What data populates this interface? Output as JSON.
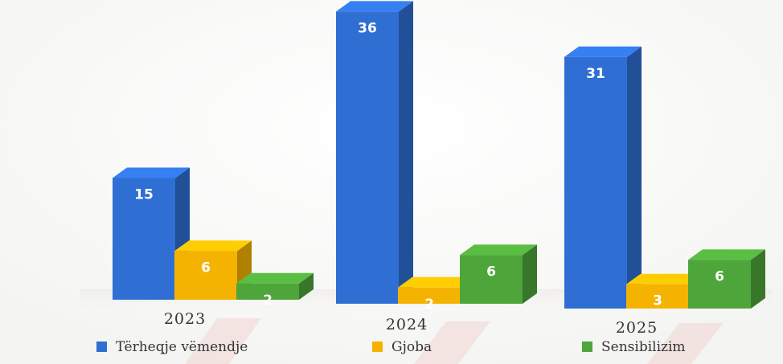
{
  "chart_data": {
    "type": "bar",
    "categories": [
      "2023",
      "2024",
      "2025"
    ],
    "series": [
      {
        "name": "Tërheqje vëmendje",
        "values": [
          15,
          36,
          31
        ],
        "color": "#2f6fd3"
      },
      {
        "name": "Gjoba",
        "values": [
          6,
          2,
          3
        ],
        "color": "#f5b301"
      },
      {
        "name": "Sensibilizim",
        "values": [
          2,
          6,
          6
        ],
        "color": "#4ea53a"
      }
    ],
    "data_labels": true,
    "style": "3d-columns",
    "legend_position": "bottom"
  }
}
